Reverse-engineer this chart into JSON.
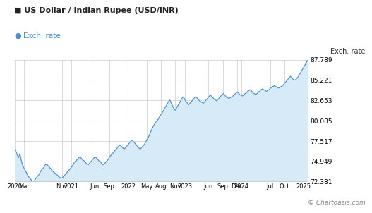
{
  "title": "■ US Dollar / Indian Rupee (USD/INR)",
  "legend_label": "Exch. rate",
  "y_axis_label": "Exch. rate",
  "watermark": "© Chartoasis.com",
  "y_ticks": [
    72.381,
    74.949,
    77.517,
    80.085,
    82.653,
    85.221,
    87.789
  ],
  "y_min": 72.381,
  "y_max": 87.789,
  "line_color": "#4a90d9",
  "fill_color": "#d6eaf8",
  "title_color": "#222222",
  "legend_color": "#4a90d9",
  "background_color": "#ffffff",
  "grid_color": "#cccccc",
  "x_labels": [
    "2020",
    "Mar",
    "Nov",
    "2021",
    "Jun",
    "Sep",
    "2022",
    "May",
    "Aug",
    "Nov",
    "2023",
    "Jun",
    "Sep",
    "Dec",
    "2024",
    "Jul",
    "Oct",
    "2025"
  ],
  "months_from_start": [
    0,
    2,
    10,
    12,
    17,
    20,
    24,
    28,
    31,
    34,
    36,
    41,
    44,
    47,
    48,
    54,
    57,
    61
  ],
  "total_months": 62,
  "data_points": [
    76.5,
    76.2,
    75.8,
    75.4,
    75.9,
    75.1,
    74.5,
    74.1,
    73.8,
    73.5,
    73.1,
    72.9,
    72.7,
    72.5,
    72.4,
    72.5,
    72.8,
    73.0,
    73.2,
    73.5,
    73.8,
    74.0,
    74.2,
    74.5,
    74.6,
    74.4,
    74.2,
    74.0,
    73.8,
    73.6,
    73.5,
    73.3,
    73.2,
    73.0,
    72.9,
    72.8,
    72.9,
    73.1,
    73.3,
    73.5,
    73.7,
    73.9,
    74.1,
    74.3,
    74.6,
    74.9,
    75.0,
    75.2,
    75.4,
    75.5,
    75.3,
    75.1,
    75.0,
    74.8,
    74.6,
    74.5,
    74.7,
    74.9,
    75.1,
    75.3,
    75.5,
    75.4,
    75.2,
    75.0,
    74.9,
    74.7,
    74.5,
    74.6,
    74.8,
    75.0,
    75.2,
    75.5,
    75.7,
    75.9,
    76.1,
    76.3,
    76.5,
    76.7,
    76.9,
    77.0,
    76.8,
    76.6,
    76.5,
    76.7,
    76.9,
    77.1,
    77.3,
    77.5,
    77.6,
    77.4,
    77.2,
    77.0,
    76.8,
    76.6,
    76.5,
    76.7,
    76.9,
    77.1,
    77.4,
    77.7,
    78.0,
    78.4,
    78.8,
    79.2,
    79.5,
    79.8,
    80.0,
    80.2,
    80.5,
    80.8,
    81.0,
    81.3,
    81.6,
    81.9,
    82.2,
    82.5,
    82.7,
    82.3,
    81.9,
    81.6,
    81.4,
    81.7,
    82.0,
    82.3,
    82.6,
    82.9,
    83.1,
    82.8,
    82.5,
    82.3,
    82.1,
    82.3,
    82.5,
    82.7,
    82.9,
    83.1,
    83.0,
    82.8,
    82.6,
    82.5,
    82.4,
    82.3,
    82.5,
    82.7,
    82.9,
    83.1,
    83.3,
    83.2,
    83.0,
    82.8,
    82.7,
    82.6,
    82.8,
    83.0,
    83.2,
    83.4,
    83.5,
    83.3,
    83.1,
    83.0,
    82.9,
    83.0,
    83.1,
    83.2,
    83.4,
    83.5,
    83.7,
    83.6,
    83.4,
    83.3,
    83.2,
    83.3,
    83.5,
    83.6,
    83.8,
    83.9,
    84.0,
    83.8,
    83.6,
    83.5,
    83.4,
    83.5,
    83.7,
    83.8,
    84.0,
    84.1,
    84.0,
    83.9,
    83.8,
    83.9,
    84.0,
    84.2,
    84.3,
    84.4,
    84.5,
    84.4,
    84.3,
    84.2,
    84.3,
    84.4,
    84.5,
    84.7,
    84.9,
    85.1,
    85.3,
    85.5,
    85.7,
    85.5,
    85.3,
    85.2,
    85.3,
    85.5,
    85.7,
    86.0,
    86.3,
    86.6,
    86.9,
    87.2,
    87.5,
    87.789
  ]
}
